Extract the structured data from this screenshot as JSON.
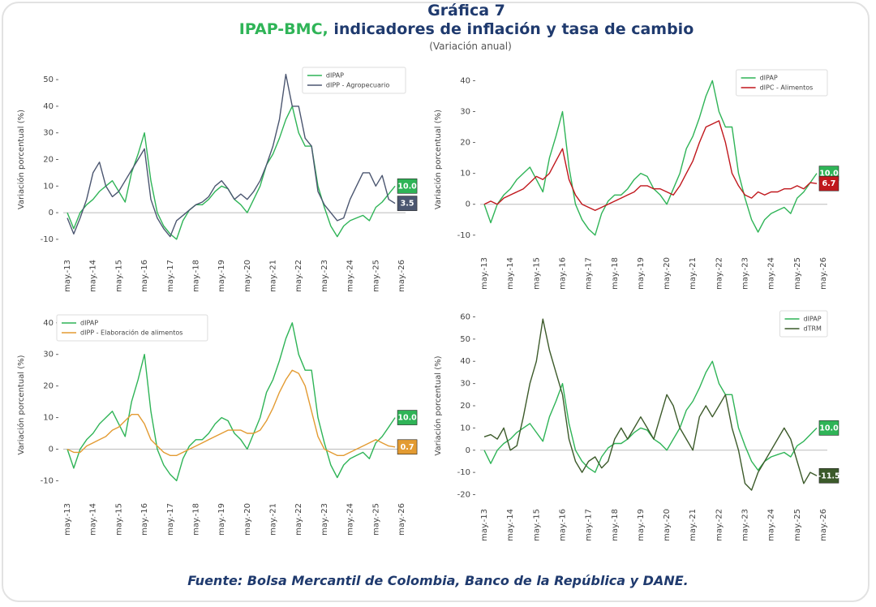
{
  "header": {
    "title": "Gráfica 7",
    "subtitle_highlight": "IPAP-BMC,",
    "subtitle": "indicadores de inflación y tasa de cambio",
    "note": "(Variación anual)"
  },
  "source": "Fuente: Bolsa Mercantil de Colombia, Banco de la República y DANE.",
  "chart_data": [
    {
      "type": "line",
      "ylabel": "Variación porcentual (%)",
      "legend": "upper right",
      "end_labels": true,
      "zero_line": true,
      "categories": [
        "may.-13",
        null,
        null,
        null,
        "may.-14",
        null,
        null,
        null,
        "may.-15",
        null,
        null,
        null,
        "may.-16",
        null,
        null,
        null,
        "may.-17",
        null,
        null,
        null,
        "may.-18",
        null,
        null,
        null,
        "may.-19",
        null,
        null,
        null,
        "may.-20",
        null,
        null,
        null,
        "may.-21",
        null,
        null,
        null,
        "may.-22",
        null,
        null,
        null,
        "may.-23",
        null,
        null,
        null,
        "may.-24",
        null,
        null,
        null,
        "may.-25",
        null,
        null,
        null,
        "may.-26"
      ],
      "ylim": [
        -14,
        54
      ],
      "yticks": [
        -10,
        0,
        10,
        20,
        30,
        40,
        50
      ],
      "series": [
        {
          "name": "dIPAP",
          "color": "#2fb457",
          "values": [
            0,
            -6,
            0,
            3,
            5,
            8,
            10,
            12,
            8,
            4,
            15,
            22,
            30,
            12,
            0,
            -5,
            -8,
            -10,
            -3,
            1,
            3,
            3,
            5,
            8,
            10,
            9,
            5,
            3,
            0,
            5,
            10,
            18,
            22,
            28,
            35,
            40,
            30,
            25,
            25,
            10,
            2,
            -5,
            -9,
            -5,
            -3,
            -2,
            -1,
            -3,
            2,
            4,
            7,
            10.0,
            null
          ],
          "value_labels": [
            null,
            null,
            null,
            null,
            null,
            null,
            null,
            null,
            null,
            null,
            null,
            null,
            null,
            null,
            null,
            null,
            null,
            null,
            null,
            null,
            null,
            null,
            null,
            null,
            null,
            null,
            null,
            null,
            null,
            null,
            null,
            null,
            null,
            null,
            null,
            null,
            null,
            null,
            null,
            null,
            null,
            null,
            null,
            null,
            null,
            null,
            null,
            null,
            null,
            null,
            null,
            "10.0",
            null
          ]
        },
        {
          "name": "dIPP - Agropecuario",
          "color": "#4b5670",
          "values": [
            -2,
            -8,
            -2,
            5,
            15,
            19,
            10,
            6,
            8,
            12,
            16,
            20,
            24,
            5,
            -2,
            -6,
            -9,
            -3,
            -1,
            1,
            3,
            4,
            6,
            10,
            12,
            9,
            5,
            7,
            5,
            8,
            12,
            18,
            25,
            35,
            52,
            40,
            40,
            28,
            25,
            8,
            3,
            0,
            -3,
            -2,
            5,
            10,
            15,
            15,
            10,
            14,
            5,
            3.5,
            null
          ]
        }
      ]
    },
    {
      "type": "line",
      "ylabel": "Variación porcentual (%)",
      "legend": "upper right",
      "end_labels": true,
      "zero_line": true,
      "categories": [
        "may.-13",
        null,
        null,
        null,
        "may.-14",
        null,
        null,
        null,
        "may.-15",
        null,
        null,
        null,
        "may.-16",
        null,
        null,
        null,
        "may.-17",
        null,
        null,
        null,
        "may.-18",
        null,
        null,
        null,
        "may.-19",
        null,
        null,
        null,
        "may.-20",
        null,
        null,
        null,
        "may.-21",
        null,
        null,
        null,
        "may.-22",
        null,
        null,
        null,
        "may.-23",
        null,
        null,
        null,
        "may.-24",
        null,
        null,
        null,
        "may.-25",
        null,
        null,
        null,
        "may.-26"
      ],
      "ylim": [
        -14,
        43
      ],
      "yticks": [
        -10,
        0,
        10,
        20,
        30,
        40
      ],
      "series": [
        {
          "name": "dIPAP",
          "color": "#2fb457",
          "values": [
            0,
            -6,
            0,
            3,
            5,
            8,
            10,
            12,
            8,
            4,
            15,
            22,
            30,
            12,
            0,
            -5,
            -8,
            -10,
            -3,
            1,
            3,
            3,
            5,
            8,
            10,
            9,
            5,
            3,
            0,
            5,
            10,
            18,
            22,
            28,
            35,
            40,
            30,
            25,
            25,
            10,
            2,
            -5,
            -9,
            -5,
            -3,
            -2,
            -1,
            -3,
            2,
            4,
            7,
            10.0,
            null
          ],
          "value_labels": [
            null,
            null,
            null,
            null,
            null,
            null,
            null,
            null,
            null,
            null,
            null,
            null,
            null,
            null,
            null,
            null,
            null,
            null,
            null,
            null,
            null,
            null,
            null,
            null,
            null,
            null,
            null,
            null,
            null,
            null,
            null,
            null,
            null,
            null,
            null,
            null,
            null,
            null,
            null,
            null,
            null,
            null,
            null,
            null,
            null,
            null,
            null,
            null,
            null,
            null,
            null,
            "10.0",
            null
          ]
        },
        {
          "name": "dIPC - Alimentos",
          "color": "#c0171c",
          "values": [
            0,
            1,
            0,
            2,
            3,
            4,
            5,
            7,
            9,
            8,
            10,
            14,
            18,
            8,
            3,
            0,
            -1,
            -2,
            -1,
            0,
            1,
            2,
            3,
            4,
            6,
            6,
            5,
            5,
            4,
            3,
            6,
            10,
            14,
            20,
            25,
            26,
            27,
            20,
            10,
            6,
            3,
            2,
            4,
            3,
            4,
            4,
            5,
            5,
            6,
            5,
            7,
            6.7,
            null
          ]
        }
      ]
    },
    {
      "type": "line",
      "ylabel": "Variación porcentual (%)",
      "legend": "upper left",
      "end_labels": true,
      "zero_line": true,
      "categories": [
        "may.-13",
        null,
        null,
        null,
        "may.-14",
        null,
        null,
        null,
        "may.-15",
        null,
        null,
        null,
        "may.-16",
        null,
        null,
        null,
        "may.-17",
        null,
        null,
        null,
        "may.-18",
        null,
        null,
        null,
        "may.-19",
        null,
        null,
        null,
        "may.-20",
        null,
        null,
        null,
        "may.-21",
        null,
        null,
        null,
        "may.-22",
        null,
        null,
        null,
        "may.-23",
        null,
        null,
        null,
        "may.-24",
        null,
        null,
        null,
        "may.-25",
        null,
        null,
        null,
        "may.-26"
      ],
      "ylim": [
        -14,
        42
      ],
      "yticks": [
        -10,
        0,
        10,
        20,
        30,
        40
      ],
      "series": [
        {
          "name": "dIPAP",
          "color": "#2fb457",
          "values": [
            0,
            -6,
            0,
            3,
            5,
            8,
            10,
            12,
            8,
            4,
            15,
            22,
            30,
            12,
            0,
            -5,
            -8,
            -10,
            -3,
            1,
            3,
            3,
            5,
            8,
            10,
            9,
            5,
            3,
            0,
            5,
            10,
            18,
            22,
            28,
            35,
            40,
            30,
            25,
            25,
            10,
            2,
            -5,
            -9,
            -5,
            -3,
            -2,
            -1,
            -3,
            2,
            4,
            7,
            10.0,
            null
          ],
          "value_labels": [
            null,
            null,
            null,
            null,
            null,
            null,
            null,
            null,
            null,
            null,
            null,
            null,
            null,
            null,
            null,
            null,
            null,
            null,
            null,
            null,
            null,
            null,
            null,
            null,
            null,
            null,
            null,
            null,
            null,
            null,
            null,
            null,
            null,
            null,
            null,
            null,
            null,
            null,
            null,
            null,
            null,
            null,
            null,
            null,
            null,
            null,
            null,
            null,
            null,
            null,
            null,
            "10.0",
            null
          ]
        },
        {
          "name": "dIPP - Elaboración de alimentos",
          "color": "#e39b32",
          "values": [
            0,
            -1,
            -1,
            1,
            2,
            3,
            4,
            6,
            7,
            9,
            11,
            11,
            8,
            3,
            1,
            -1,
            -2,
            -2,
            -1,
            0,
            1,
            2,
            3,
            4,
            5,
            6,
            6,
            6,
            5,
            5,
            6,
            9,
            13,
            18,
            22,
            25,
            24,
            20,
            12,
            4,
            0,
            -1,
            -2,
            -2,
            -1,
            0,
            1,
            2,
            3,
            2,
            1,
            0.7,
            null
          ]
        }
      ]
    },
    {
      "type": "line",
      "ylabel": "Variación porcentual (%)",
      "legend": "upper right",
      "end_labels": true,
      "zero_line": true,
      "categories": [
        "may.-13",
        null,
        null,
        null,
        "may.-14",
        null,
        null,
        null,
        "may.-15",
        null,
        null,
        null,
        "may.-16",
        null,
        null,
        null,
        "may.-17",
        null,
        null,
        null,
        "may.-18",
        null,
        null,
        null,
        "may.-19",
        null,
        null,
        null,
        "may.-20",
        null,
        null,
        null,
        "may.-21",
        null,
        null,
        null,
        "may.-22",
        null,
        null,
        null,
        "may.-23",
        null,
        null,
        null,
        "may.-24",
        null,
        null,
        null,
        "may.-25",
        null,
        null,
        null,
        "may.-26"
      ],
      "ylim": [
        -22,
        62
      ],
      "yticks": [
        -20,
        -10,
        0,
        10,
        20,
        30,
        40,
        50,
        60
      ],
      "series": [
        {
          "name": "dIPAP",
          "color": "#2fb457",
          "values": [
            0,
            -6,
            0,
            3,
            5,
            8,
            10,
            12,
            8,
            4,
            15,
            22,
            30,
            12,
            0,
            -5,
            -8,
            -10,
            -3,
            1,
            3,
            3,
            5,
            8,
            10,
            9,
            5,
            3,
            0,
            5,
            10,
            18,
            22,
            28,
            35,
            40,
            30,
            25,
            25,
            10,
            2,
            -5,
            -9,
            -5,
            -3,
            -2,
            -1,
            -3,
            2,
            4,
            7,
            10.0,
            null
          ],
          "value_labels": [
            null,
            null,
            null,
            null,
            null,
            null,
            null,
            null,
            null,
            null,
            null,
            null,
            null,
            null,
            null,
            null,
            null,
            null,
            null,
            null,
            null,
            null,
            null,
            null,
            null,
            null,
            null,
            null,
            null,
            null,
            null,
            null,
            null,
            null,
            null,
            null,
            null,
            null,
            null,
            null,
            null,
            null,
            null,
            null,
            null,
            null,
            null,
            null,
            null,
            null,
            null,
            "10.0",
            null
          ]
        },
        {
          "name": "dTRM",
          "color": "#3c5a2a",
          "values": [
            6,
            7,
            5,
            10,
            0,
            2,
            15,
            30,
            40,
            59,
            45,
            35,
            25,
            5,
            -5,
            -10,
            -5,
            -3,
            -8,
            -5,
            5,
            10,
            5,
            10,
            15,
            10,
            5,
            15,
            25,
            20,
            10,
            5,
            0,
            15,
            20,
            15,
            20,
            25,
            10,
            0,
            -15,
            -18,
            -10,
            -5,
            0,
            5,
            10,
            5,
            -5,
            -15,
            -10,
            -11.5,
            null
          ]
        }
      ]
    }
  ]
}
